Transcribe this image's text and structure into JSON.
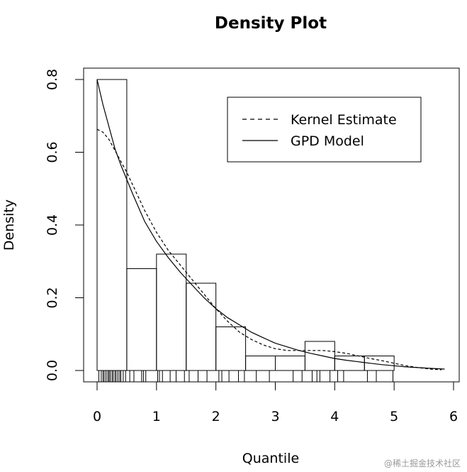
{
  "chart_data": {
    "type": "histogram",
    "title": "Density Plot",
    "xlabel": "Quantile",
    "ylabel": "Density",
    "xlim": [
      0,
      6
    ],
    "ylim": [
      0,
      0.8
    ],
    "x_ticks": [
      "0",
      "1",
      "2",
      "3",
      "4",
      "5",
      "6"
    ],
    "x_tick_values": [
      0,
      1,
      2,
      3,
      4,
      5,
      6
    ],
    "y_ticks": [
      "0.0",
      "0.2",
      "0.4",
      "0.6",
      "0.8"
    ],
    "y_tick_values": [
      0,
      0.2,
      0.4,
      0.6,
      0.8
    ],
    "histogram": {
      "bin_edges": [
        0,
        0.5,
        1.0,
        1.5,
        2.0,
        2.5,
        3.0,
        3.5,
        4.0,
        4.5,
        5.0
      ],
      "density": [
        0.8,
        0.28,
        0.32,
        0.24,
        0.12,
        0.04,
        0.04,
        0.08,
        0.04,
        0.04
      ]
    },
    "series": [
      {
        "name": "Kernel Estimate",
        "line_style": "dashed",
        "x": [
          0,
          0.1,
          0.2,
          0.3,
          0.4,
          0.5,
          0.6,
          0.8,
          1.0,
          1.2,
          1.4,
          1.6,
          1.8,
          2.0,
          2.2,
          2.4,
          2.6,
          2.8,
          3.0,
          3.2,
          3.4,
          3.6,
          3.8,
          4.0,
          4.2,
          4.4,
          4.6,
          4.8,
          5.0,
          5.2,
          5.4,
          5.6,
          5.8
        ],
        "y": [
          0.663,
          0.655,
          0.635,
          0.605,
          0.575,
          0.545,
          0.51,
          0.44,
          0.38,
          0.33,
          0.29,
          0.25,
          0.21,
          0.17,
          0.135,
          0.105,
          0.085,
          0.07,
          0.06,
          0.055,
          0.055,
          0.055,
          0.055,
          0.052,
          0.047,
          0.04,
          0.033,
          0.027,
          0.02,
          0.013,
          0.008,
          0.004,
          0.002
        ]
      },
      {
        "name": "GPD Model",
        "line_style": "solid",
        "x": [
          0,
          0.1,
          0.2,
          0.3,
          0.4,
          0.5,
          0.6,
          0.8,
          1.0,
          1.2,
          1.4,
          1.6,
          1.8,
          2.0,
          2.2,
          2.4,
          2.6,
          2.8,
          3.0,
          3.2,
          3.4,
          3.6,
          3.8,
          4.0,
          4.2,
          4.4,
          4.6,
          4.8,
          5.0,
          5.2,
          5.4,
          5.6,
          5.85
        ],
        "y": [
          0.8,
          0.73,
          0.67,
          0.61,
          0.565,
          0.525,
          0.485,
          0.41,
          0.355,
          0.31,
          0.27,
          0.235,
          0.2,
          0.17,
          0.145,
          0.125,
          0.105,
          0.09,
          0.075,
          0.065,
          0.055,
          0.047,
          0.04,
          0.033,
          0.028,
          0.024,
          0.02,
          0.016,
          0.013,
          0.01,
          0.008,
          0.006,
          0.004
        ]
      }
    ],
    "rug": [
      0.03,
      0.07,
      0.1,
      0.12,
      0.15,
      0.18,
      0.2,
      0.22,
      0.25,
      0.27,
      0.3,
      0.32,
      0.35,
      0.38,
      0.4,
      0.44,
      0.48,
      0.55,
      0.62,
      0.75,
      0.78,
      0.82,
      1.02,
      1.05,
      1.1,
      1.23,
      1.33,
      1.47,
      1.55,
      1.7,
      1.85,
      2.05,
      2.1,
      2.22,
      2.38,
      2.48,
      2.68,
      2.9,
      3.3,
      3.45,
      3.62,
      3.7,
      3.75,
      3.92,
      4.05,
      4.15,
      4.55,
      4.7,
      4.98
    ],
    "legend": {
      "position": "top-right",
      "entries": [
        "Kernel Estimate",
        "GPD Model"
      ]
    },
    "grid": false
  },
  "watermark": "@稀土掘金技术社区"
}
